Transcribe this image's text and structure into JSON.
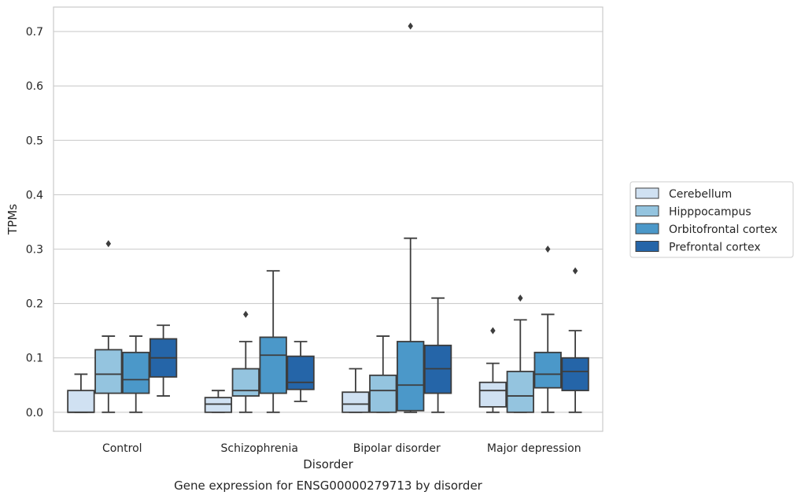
{
  "chart_data": {
    "type": "box",
    "title": "Gene expression for ENSG00000279713 by disorder",
    "xlabel": "Disorder",
    "ylabel": "TPMs",
    "ylim": [
      -0.035,
      0.745
    ],
    "yticks": [
      "0.0",
      "0.1",
      "0.2",
      "0.3",
      "0.4",
      "0.5",
      "0.6",
      "0.7"
    ],
    "grid": "horizontal",
    "legend_placement": "right",
    "categories": [
      "Control",
      "Schizophrenia",
      "Bipolar disorder",
      "Major depression"
    ],
    "series": [
      {
        "name": "Cerebellum",
        "color": "#d0e1f2",
        "boxes": [
          {
            "whislo": 0.0,
            "q1": 0.0,
            "med": 0.0,
            "q3": 0.04,
            "whishi": 0.07,
            "fliers": []
          },
          {
            "whislo": 0.0,
            "q1": 0.0,
            "med": 0.015,
            "q3": 0.027,
            "whishi": 0.04,
            "fliers": []
          },
          {
            "whislo": 0.0,
            "q1": 0.0,
            "med": 0.015,
            "q3": 0.037,
            "whishi": 0.08,
            "fliers": []
          },
          {
            "whislo": 0.0,
            "q1": 0.01,
            "med": 0.04,
            "q3": 0.055,
            "whishi": 0.09,
            "fliers": [
              0.15
            ]
          }
        ]
      },
      {
        "name": "Hipppocampus",
        "color": "#94c4df",
        "boxes": [
          {
            "whislo": 0.0,
            "q1": 0.035,
            "med": 0.07,
            "q3": 0.115,
            "whishi": 0.14,
            "fliers": [
              0.31
            ]
          },
          {
            "whislo": 0.0,
            "q1": 0.03,
            "med": 0.04,
            "q3": 0.08,
            "whishi": 0.13,
            "fliers": [
              0.18
            ]
          },
          {
            "whislo": 0.0,
            "q1": 0.0,
            "med": 0.04,
            "q3": 0.068,
            "whishi": 0.14,
            "fliers": []
          },
          {
            "whislo": 0.0,
            "q1": 0.0,
            "med": 0.03,
            "q3": 0.075,
            "whishi": 0.17,
            "fliers": [
              0.21
            ]
          }
        ]
      },
      {
        "name": "Orbitofrontal cortex",
        "color": "#4b98c9",
        "boxes": [
          {
            "whislo": 0.0,
            "q1": 0.035,
            "med": 0.06,
            "q3": 0.11,
            "whishi": 0.14,
            "fliers": []
          },
          {
            "whislo": 0.0,
            "q1": 0.035,
            "med": 0.105,
            "q3": 0.138,
            "whishi": 0.26,
            "fliers": []
          },
          {
            "whislo": 0.0,
            "q1": 0.003,
            "med": 0.05,
            "q3": 0.13,
            "whishi": 0.32,
            "fliers": [
              0.71
            ]
          },
          {
            "whislo": 0.0,
            "q1": 0.045,
            "med": 0.07,
            "q3": 0.11,
            "whishi": 0.18,
            "fliers": [
              0.3
            ]
          }
        ]
      },
      {
        "name": "Prefrontal cortex",
        "color": "#2565a8",
        "boxes": [
          {
            "whislo": 0.03,
            "q1": 0.065,
            "med": 0.1,
            "q3": 0.135,
            "whishi": 0.16,
            "fliers": []
          },
          {
            "whislo": 0.02,
            "q1": 0.042,
            "med": 0.055,
            "q3": 0.103,
            "whishi": 0.13,
            "fliers": []
          },
          {
            "whislo": 0.0,
            "q1": 0.035,
            "med": 0.08,
            "q3": 0.123,
            "whishi": 0.21,
            "fliers": []
          },
          {
            "whislo": 0.0,
            "q1": 0.04,
            "med": 0.075,
            "q3": 0.1,
            "whishi": 0.15,
            "fliers": [
              0.26
            ]
          }
        ]
      }
    ]
  }
}
